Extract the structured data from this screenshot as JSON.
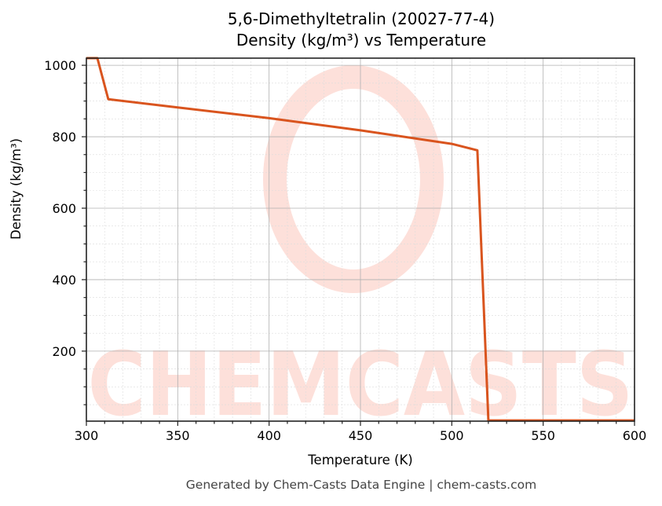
{
  "title": {
    "line1": "5,6-Dimethyltetralin (20027-77-4)",
    "line2": "Density (kg/m³) vs Temperature"
  },
  "footer": "Generated by Chem-Casts Data Engine | chem-casts.com",
  "watermark": "CHEMCASTS",
  "colors": {
    "line": "#d9541e",
    "watermark": "#fde0da",
    "grid_major": "#b0b0b0",
    "grid_minor": "#dcdcdc"
  },
  "chart_data": {
    "type": "line",
    "title": "5,6-Dimethyltetralin (20027-77-4) Density (kg/m³) vs Temperature",
    "xlabel": "Temperature (K)",
    "ylabel": "Density (kg/m³)",
    "xlim": [
      300,
      600
    ],
    "ylim": [
      4,
      1020
    ],
    "xticks": [
      300,
      350,
      400,
      450,
      500,
      550,
      600
    ],
    "yticks": [
      200,
      400,
      600,
      800,
      1000
    ],
    "grid": true,
    "legend": null,
    "series": [
      {
        "name": "Density",
        "x": [
          300,
          306,
          312,
          350,
          400,
          450,
          500,
          514,
          520,
          600
        ],
        "y": [
          1020,
          1020,
          905,
          882,
          852,
          818,
          780,
          762,
          6,
          6
        ]
      }
    ]
  }
}
